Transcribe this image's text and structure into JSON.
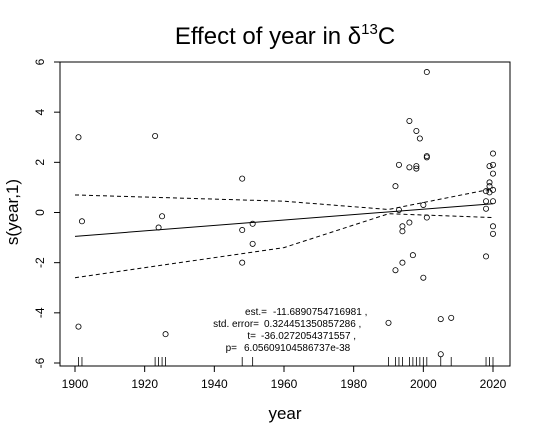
{
  "chart_data": {
    "type": "scatter",
    "title": "Effect of year in δ",
    "title_superscript": "13",
    "title_suffix": "C",
    "xlabel": "year",
    "ylabel": "s(year,1)",
    "xlim": [
      1900,
      2020
    ],
    "ylim": [
      -6,
      6
    ],
    "x_ticks": [
      1900,
      1920,
      1940,
      1960,
      1980,
      2000,
      2020
    ],
    "y_ticks": [
      -6,
      -4,
      -2,
      0,
      2,
      4,
      6
    ],
    "grid": false,
    "points": [
      {
        "x": 1901,
        "y": 3.0
      },
      {
        "x": 1901,
        "y": -4.55
      },
      {
        "x": 1902,
        "y": -0.35
      },
      {
        "x": 1923,
        "y": 3.05
      },
      {
        "x": 1924,
        "y": -0.6
      },
      {
        "x": 1925,
        "y": -0.15
      },
      {
        "x": 1926,
        "y": -4.85
      },
      {
        "x": 1948,
        "y": 1.35
      },
      {
        "x": 1948,
        "y": -0.7
      },
      {
        "x": 1948,
        "y": -2.0
      },
      {
        "x": 1951,
        "y": -0.45
      },
      {
        "x": 1951,
        "y": -1.25
      },
      {
        "x": 1990,
        "y": -4.4
      },
      {
        "x": 1992,
        "y": 1.05
      },
      {
        "x": 1992,
        "y": -2.3
      },
      {
        "x": 1993,
        "y": 1.9
      },
      {
        "x": 1993,
        "y": 0.1
      },
      {
        "x": 1994,
        "y": -0.55
      },
      {
        "x": 1994,
        "y": -0.75
      },
      {
        "x": 1994,
        "y": -2.0
      },
      {
        "x": 1996,
        "y": 3.65
      },
      {
        "x": 1996,
        "y": 1.8
      },
      {
        "x": 1996,
        "y": -0.4
      },
      {
        "x": 1997,
        "y": -1.7
      },
      {
        "x": 1998,
        "y": 3.25
      },
      {
        "x": 1998,
        "y": 1.85
      },
      {
        "x": 1998,
        "y": 1.75
      },
      {
        "x": 1999,
        "y": 2.95
      },
      {
        "x": 2000,
        "y": 0.3
      },
      {
        "x": 2000,
        "y": -2.6
      },
      {
        "x": 2001,
        "y": 5.6
      },
      {
        "x": 2001,
        "y": 2.25
      },
      {
        "x": 2001,
        "y": 2.2
      },
      {
        "x": 2001,
        "y": -0.2
      },
      {
        "x": 2005,
        "y": -4.25
      },
      {
        "x": 2005,
        "y": -5.65
      },
      {
        "x": 2008,
        "y": -4.2
      },
      {
        "x": 2018,
        "y": -1.75
      },
      {
        "x": 2018,
        "y": 0.15
      },
      {
        "x": 2018,
        "y": 0.45
      },
      {
        "x": 2018,
        "y": 0.85
      },
      {
        "x": 2019,
        "y": 1.2
      },
      {
        "x": 2019,
        "y": 1.05
      },
      {
        "x": 2019,
        "y": 1.85
      },
      {
        "x": 2019,
        "y": 0.8
      },
      {
        "x": 2020,
        "y": 2.35
      },
      {
        "x": 2020,
        "y": 1.9
      },
      {
        "x": 2020,
        "y": 1.55
      },
      {
        "x": 2020,
        "y": 0.9
      },
      {
        "x": 2020,
        "y": 0.45
      },
      {
        "x": 2020,
        "y": -0.55
      },
      {
        "x": 2020,
        "y": -0.85
      }
    ],
    "fit_line": {
      "x": [
        1900,
        2020
      ],
      "y": [
        -0.95,
        0.35
      ]
    },
    "confidence_upper": {
      "x": [
        1900,
        1960,
        1990,
        2020
      ],
      "y": [
        0.7,
        0.45,
        0.12,
        0.95
      ]
    },
    "confidence_lower": {
      "x": [
        1900,
        1960,
        1990,
        2020
      ],
      "y": [
        -2.6,
        -1.4,
        -0.05,
        -0.2
      ]
    },
    "rug_x": [
      1901,
      1902,
      1923,
      1924,
      1925,
      1926,
      1948,
      1951,
      1990,
      1992,
      1993,
      1994,
      1996,
      1997,
      1998,
      1999,
      2000,
      2001,
      2005,
      2008,
      2018,
      2019,
      2020
    ],
    "annotations": [
      {
        "key": "est.=",
        "value": "-11.6890754716981 ,"
      },
      {
        "key": "std. error=",
        "value": "0.324451350857286 ,"
      },
      {
        "key": "t=",
        "value": "-36.0272054371557 ,"
      },
      {
        "key": "p=",
        "value": "6.05609104586737e-38"
      }
    ]
  }
}
